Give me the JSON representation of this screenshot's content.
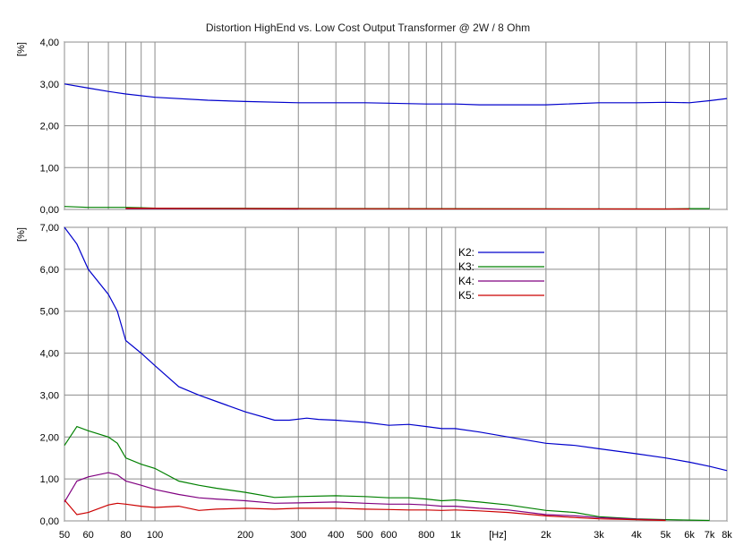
{
  "chart_data": {
    "type": "line",
    "title": "Distortion HighEnd vs. Low Cost Output Transformer @ 2W / 8 Ohm",
    "xlabel": "[Hz]",
    "xscale": "log",
    "xlim": [
      50,
      8000
    ],
    "x_ticks": [
      50,
      60,
      80,
      100,
      200,
      300,
      400,
      500,
      600,
      800,
      1000,
      2000,
      3000,
      4000,
      5000,
      6000,
      7000,
      8000
    ],
    "x_tick_labels": [
      "50",
      "60",
      "80",
      "100",
      "200",
      "300",
      "400",
      "500",
      "600",
      "800",
      "1k",
      "2k",
      "3k",
      "4k",
      "5k",
      "6k",
      "7k",
      "8k"
    ],
    "x_grid": [
      50,
      60,
      70,
      80,
      90,
      100,
      200,
      300,
      400,
      500,
      600,
      700,
      800,
      900,
      1000,
      2000,
      3000,
      4000,
      5000,
      6000,
      7000,
      8000
    ],
    "panels": [
      {
        "ylabel": "[%]",
        "ylim": [
          0,
          4
        ],
        "y_ticks": [
          "0,00",
          "1,00",
          "2,00",
          "3,00",
          "4,00"
        ],
        "legend": false,
        "series": [
          {
            "name": "K2",
            "color": "#0000cc",
            "x": [
              50,
              60,
              70,
              80,
              100,
              150,
              200,
              300,
              400,
              500,
              600,
              800,
              1000,
              1200,
              1500,
              2000,
              3000,
              4000,
              5000,
              6000,
              7000,
              8000
            ],
            "y": [
              3.0,
              2.9,
              2.82,
              2.76,
              2.68,
              2.61,
              2.58,
              2.55,
              2.55,
              2.55,
              2.54,
              2.52,
              2.52,
              2.5,
              2.5,
              2.5,
              2.55,
              2.55,
              2.56,
              2.55,
              2.6,
              2.65
            ]
          },
          {
            "name": "K3",
            "color": "#008000",
            "x": [
              50,
              60,
              70,
              80,
              90,
              100,
              5000,
              6000,
              7000
            ],
            "y": [
              0.07,
              0.05,
              0.05,
              0.05,
              0.04,
              0.03,
              0.01,
              0.02,
              0.02
            ]
          },
          {
            "name": "K4",
            "color": "#800080",
            "x": [
              80,
              200,
              300
            ],
            "y": [
              0.02,
              0.02,
              0.01
            ]
          },
          {
            "name": "K5",
            "color": "#cc0000",
            "x": [
              80,
              250,
              4000,
              6000
            ],
            "y": [
              0.03,
              0.02,
              0.01,
              0.01
            ]
          }
        ]
      },
      {
        "ylabel": "[%]",
        "ylim": [
          0,
          7
        ],
        "y_ticks": [
          "0,00",
          "1,00",
          "2,00",
          "3,00",
          "4,00",
          "5,00",
          "6,00",
          "7,00"
        ],
        "legend": true,
        "legend_position": "top-right",
        "series": [
          {
            "name": "K2",
            "legend_label": "K2:",
            "color": "#0000cc",
            "x": [
              50,
              55,
              60,
              70,
              75,
              80,
              90,
              100,
              120,
              140,
              160,
              200,
              250,
              280,
              320,
              350,
              400,
              500,
              600,
              700,
              800,
              900,
              1000,
              1200,
              1500,
              2000,
              2500,
              3000,
              4000,
              5000,
              6000,
              7000,
              8000
            ],
            "y": [
              7.0,
              6.6,
              6.0,
              5.4,
              5.0,
              4.3,
              4.0,
              3.7,
              3.2,
              3.0,
              2.85,
              2.6,
              2.4,
              2.4,
              2.45,
              2.42,
              2.4,
              2.35,
              2.28,
              2.3,
              2.25,
              2.2,
              2.2,
              2.12,
              2.0,
              1.85,
              1.8,
              1.72,
              1.6,
              1.5,
              1.4,
              1.3,
              1.2
            ]
          },
          {
            "name": "K3",
            "legend_label": "K3:",
            "color": "#008000",
            "x": [
              50,
              55,
              60,
              70,
              75,
              80,
              90,
              100,
              120,
              140,
              160,
              200,
              250,
              300,
              400,
              500,
              600,
              700,
              800,
              900,
              1000,
              1200,
              1500,
              2000,
              2500,
              3000,
              4000,
              5000,
              6000,
              7000
            ],
            "y": [
              1.8,
              2.25,
              2.15,
              2.0,
              1.85,
              1.5,
              1.35,
              1.25,
              0.95,
              0.85,
              0.78,
              0.68,
              0.56,
              0.58,
              0.6,
              0.58,
              0.55,
              0.55,
              0.52,
              0.48,
              0.5,
              0.45,
              0.38,
              0.25,
              0.2,
              0.1,
              0.05,
              0.03,
              0.02,
              0.01
            ]
          },
          {
            "name": "K4",
            "legend_label": "K4:",
            "color": "#800080",
            "x": [
              50,
              55,
              60,
              70,
              75,
              80,
              90,
              100,
              120,
              140,
              160,
              200,
              250,
              300,
              400,
              500,
              600,
              700,
              800,
              900,
              1000,
              1200,
              1500,
              2000,
              2500,
              3000,
              4000,
              5000
            ],
            "y": [
              0.45,
              0.95,
              1.05,
              1.15,
              1.1,
              0.95,
              0.85,
              0.75,
              0.63,
              0.55,
              0.52,
              0.48,
              0.42,
              0.43,
              0.45,
              0.42,
              0.4,
              0.4,
              0.38,
              0.35,
              0.35,
              0.3,
              0.26,
              0.15,
              0.12,
              0.08,
              0.04,
              0.02
            ]
          },
          {
            "name": "K5",
            "legend_label": "K5:",
            "color": "#cc0000",
            "x": [
              50,
              55,
              60,
              70,
              75,
              80,
              90,
              100,
              120,
              140,
              160,
              200,
              250,
              300,
              400,
              500,
              600,
              700,
              800,
              900,
              1000,
              1200,
              1500,
              2000,
              2500,
              3000,
              4000,
              5000
            ],
            "y": [
              0.5,
              0.15,
              0.2,
              0.38,
              0.42,
              0.4,
              0.35,
              0.32,
              0.35,
              0.25,
              0.28,
              0.3,
              0.28,
              0.3,
              0.3,
              0.28,
              0.27,
              0.26,
              0.26,
              0.25,
              0.26,
              0.24,
              0.2,
              0.12,
              0.08,
              0.05,
              0.03,
              0.01
            ]
          }
        ]
      }
    ]
  }
}
